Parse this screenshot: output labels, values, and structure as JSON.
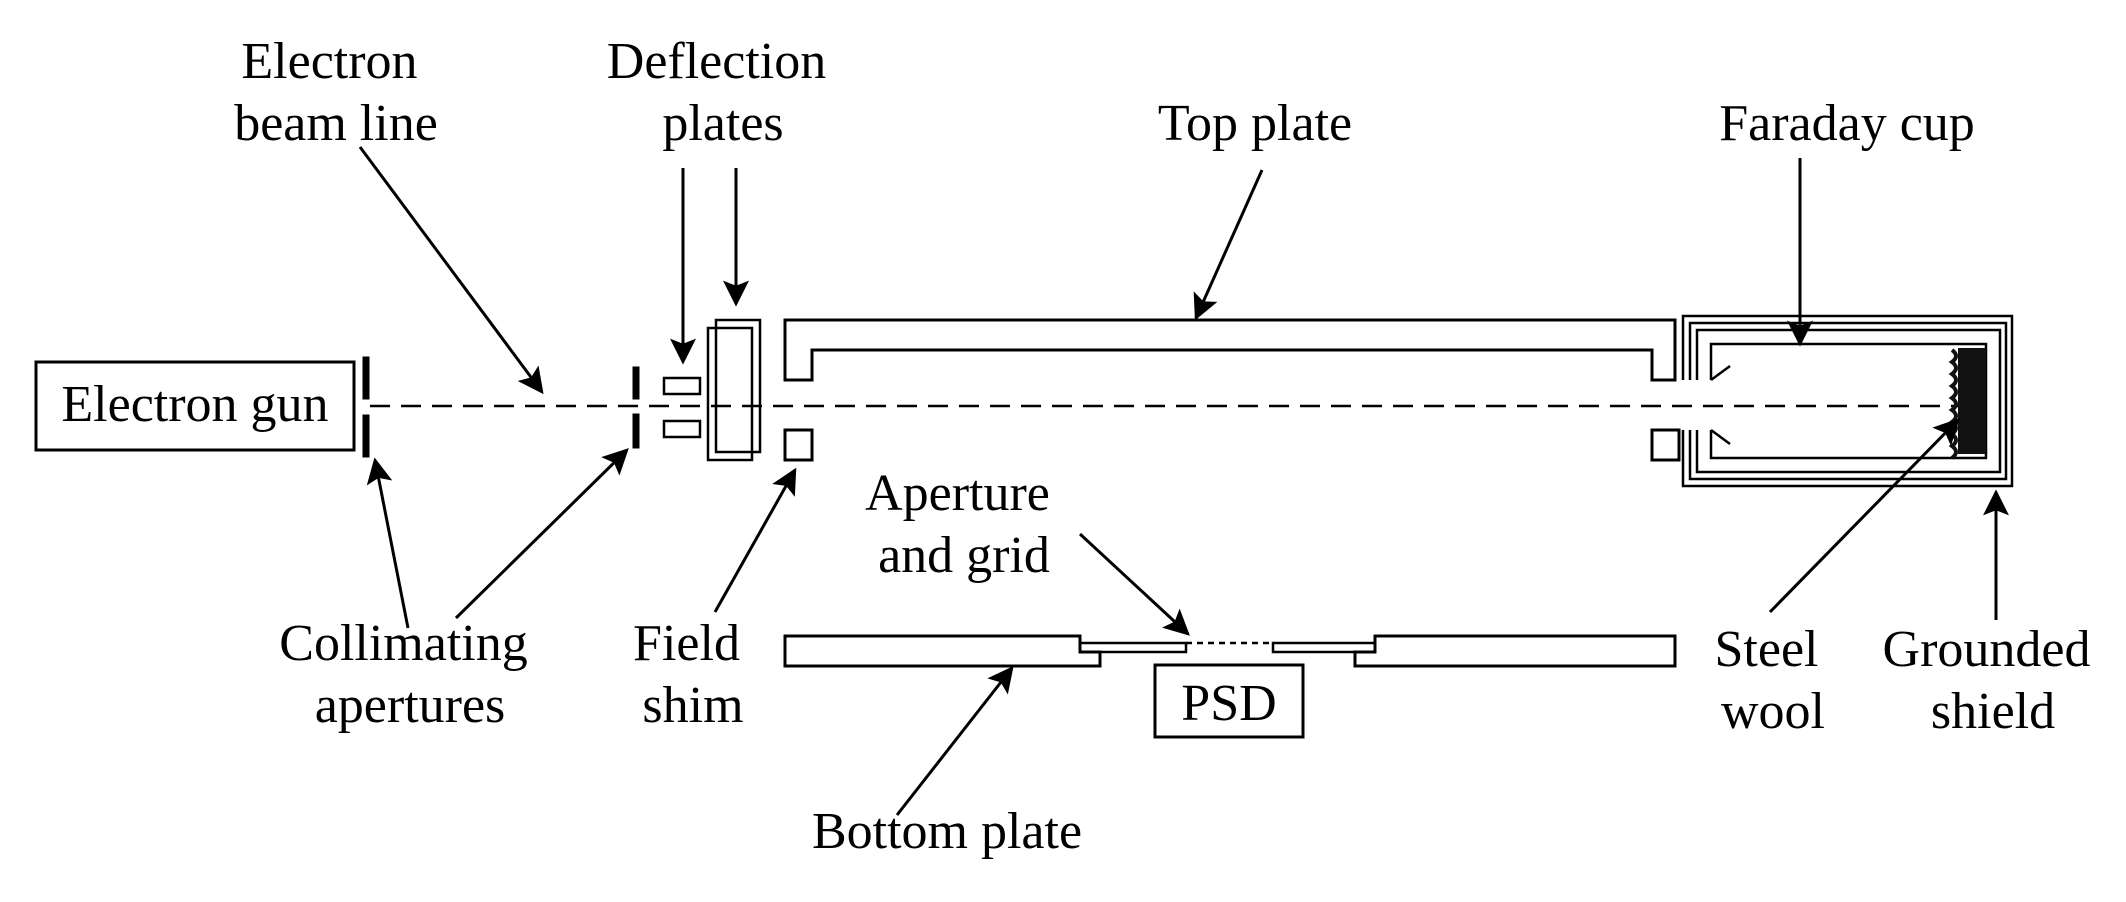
{
  "labels": {
    "electron_beam_line": [
      "Electron",
      "beam line"
    ],
    "deflection_plates": [
      "Deflection",
      "plates"
    ],
    "top_plate": "Top plate",
    "faraday_cup": "Faraday cup",
    "electron_gun": "Electron gun",
    "collimating_apertures": [
      "Collimating",
      "apertures"
    ],
    "field_shim": [
      "Field",
      "shim"
    ],
    "aperture_and_grid": [
      "Aperture",
      "and grid"
    ],
    "psd": "PSD",
    "bottom_plate": "Bottom plate",
    "steel_wool": [
      "Steel",
      "wool"
    ],
    "grounded_shield": [
      "Grounded",
      "shield"
    ]
  }
}
